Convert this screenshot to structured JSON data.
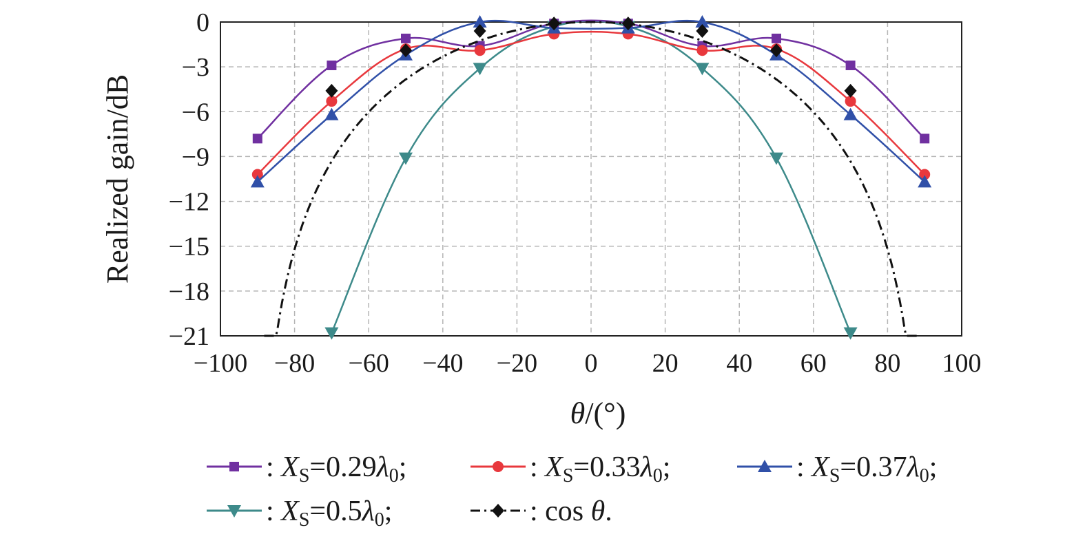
{
  "chart_data": {
    "type": "line",
    "ylabel": "Realized gain/dB",
    "xlabel": "θ/(°)",
    "xlim": [
      -100,
      100
    ],
    "ylim": [
      -21,
      0
    ],
    "xticks": [
      -100,
      -80,
      -60,
      -40,
      -20,
      0,
      20,
      40,
      60,
      80,
      100
    ],
    "yticks": [
      0,
      -3,
      -6,
      -9,
      -12,
      -15,
      -18,
      -21
    ],
    "xtick_labels": [
      "−100",
      "−80",
      "−60",
      "−40",
      "−20",
      "0",
      "20",
      "40",
      "60",
      "80",
      "100"
    ],
    "ytick_labels": [
      "0",
      "−3",
      "−6",
      "−9",
      "−12",
      "−15",
      "−18",
      "−21"
    ],
    "grid": true,
    "legend_placement": "bottom",
    "series": [
      {
        "name": "Xs=0.29λ0",
        "legend_label": ": X_S=0.29λ_0;",
        "color": "#7030a0",
        "marker": "square",
        "x": [
          -90,
          -70,
          -50,
          -30,
          -10,
          10,
          30,
          50,
          70,
          90
        ],
        "values": [
          -7.8,
          -2.9,
          -1.1,
          -1.6,
          -0.1,
          -0.1,
          -1.6,
          -1.1,
          -2.9,
          -7.8
        ]
      },
      {
        "name": "Xs=0.33λ0",
        "legend_label": ": X_S=0.33λ_0;",
        "color": "#e8383d",
        "marker": "circle",
        "x": [
          -90,
          -70,
          -50,
          -30,
          -10,
          10,
          30,
          50,
          70,
          90
        ],
        "values": [
          -10.2,
          -5.3,
          -1.8,
          -1.9,
          -0.8,
          -0.8,
          -1.9,
          -1.8,
          -5.3,
          -10.2
        ]
      },
      {
        "name": "Xs=0.37λ0",
        "legend_label": ": X_S=0.37λ_0;",
        "color": "#3050a8",
        "marker": "triangle-up",
        "x": [
          -90,
          -70,
          -50,
          -30,
          -10,
          10,
          30,
          50,
          70,
          90
        ],
        "values": [
          -10.7,
          -6.2,
          -2.2,
          0,
          -0.4,
          -0.4,
          0,
          -2.2,
          -6.2,
          -10.7
        ]
      },
      {
        "name": "Xs=0.5λ0",
        "legend_label": ": X_S=0.5λ_0;",
        "color": "#3d8a8a",
        "marker": "triangle-down",
        "x": [
          -70,
          -50,
          -30,
          -10,
          10,
          30,
          50,
          70
        ],
        "values": [
          -20.8,
          -9.1,
          -3.1,
          -0.3,
          -0.3,
          -3.1,
          -9.1,
          -20.8
        ]
      },
      {
        "name": "cos θ",
        "legend_label": ": cos θ.",
        "color": "#111111",
        "marker": "diamond",
        "dashed": true,
        "x": [
          -70,
          -50,
          -30,
          -10,
          10,
          30,
          50,
          70
        ],
        "values": [
          -4.6,
          -1.9,
          -0.6,
          -0.1,
          -0.1,
          -0.6,
          -1.9,
          -4.6
        ]
      }
    ]
  }
}
